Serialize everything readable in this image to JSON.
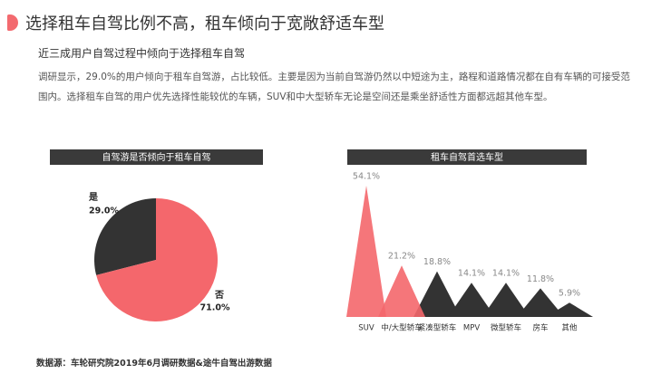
{
  "title": "选择租车自驾比例不高，租车倾向于宽敞舒适车型",
  "subtitle": "近三成用户自驾过程中倾向于选择租车自驾",
  "description": "调研显示，29.0%的用户倾向于租车自驾游，占比较低。主要是因为当前自驾游仍然以中短途为主，路程和道路情况都在自有车辆的可接受范围内。选择租车自驾的用户优先选择性能较优的车辆，SUV和中大型轿车无论是空间还是乘坐舒适性方面都远超其他车型。",
  "source": "数据源：车轮研究院2019年6月调研数据&途牛自驾出游数据",
  "chart_data": [
    {
      "type": "pie",
      "title": "自驾游是否倾向于租车自驾",
      "categories": [
        "是",
        "否"
      ],
      "values": [
        29.0,
        71.0
      ],
      "value_labels": [
        "29.0%",
        "71.0%"
      ],
      "colors": [
        "#333333",
        "#f4676c"
      ]
    },
    {
      "type": "peak",
      "title": "租车自驾首选车型",
      "categories": [
        "SUV",
        "中/大型轿车",
        "紧凑型轿车",
        "MPV",
        "微型轿车",
        "房车",
        "其他"
      ],
      "values": [
        54.1,
        21.2,
        18.8,
        14.1,
        14.1,
        11.8,
        5.9
      ],
      "value_labels": [
        "54.1%",
        "21.2%",
        "18.8%",
        "14.1%",
        "14.1%",
        "11.8%",
        "5.9%"
      ],
      "colors": [
        "#f4676c",
        "#f4676c",
        "#333333",
        "#333333",
        "#333333",
        "#333333",
        "#333333"
      ]
    }
  ]
}
